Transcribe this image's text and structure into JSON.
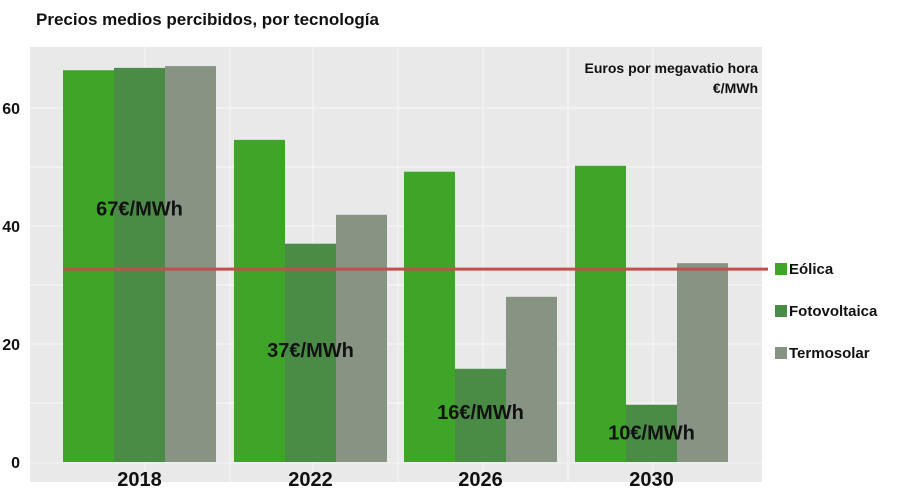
{
  "chart_data": {
    "type": "bar",
    "title": "Precios medios percibidos, por tecnología",
    "unit_label_line1": "Euros por megavatio hora",
    "unit_label_line2": "€/MWh",
    "xlabel": "",
    "ylabel": "",
    "categories": [
      "2018",
      "2022",
      "2026",
      "2030"
    ],
    "series": [
      {
        "name": "Eólica",
        "color": "#3ea529",
        "values": [
          66.4,
          54.6,
          49.2,
          50.2
        ]
      },
      {
        "name": "Fotovoltaica",
        "color": "#4a8c46",
        "values": [
          66.8,
          37.0,
          15.8,
          9.7
        ]
      },
      {
        "name": "Termosolar",
        "color": "#879484",
        "values": [
          67.1,
          41.9,
          28.0,
          33.7
        ]
      }
    ],
    "ylim": [
      0,
      69
    ],
    "yticks": [
      0,
      20,
      40,
      60
    ],
    "grid": true,
    "legend_position": "right",
    "reference_line": {
      "value": 32.7,
      "color": "#c0504d"
    },
    "annotations": [
      {
        "category": "2018",
        "text": "67€/MWh",
        "y": 43
      },
      {
        "category": "2022",
        "text": "37€/MWh",
        "y": 19
      },
      {
        "category": "2026",
        "text": "16€/MWh",
        "y": 8.5
      },
      {
        "category": "2030",
        "text": "10€/MWh",
        "y": 5
      }
    ]
  },
  "colors": {
    "plot_bg": "#e9e9e9",
    "grid": "#f7f7f7"
  }
}
